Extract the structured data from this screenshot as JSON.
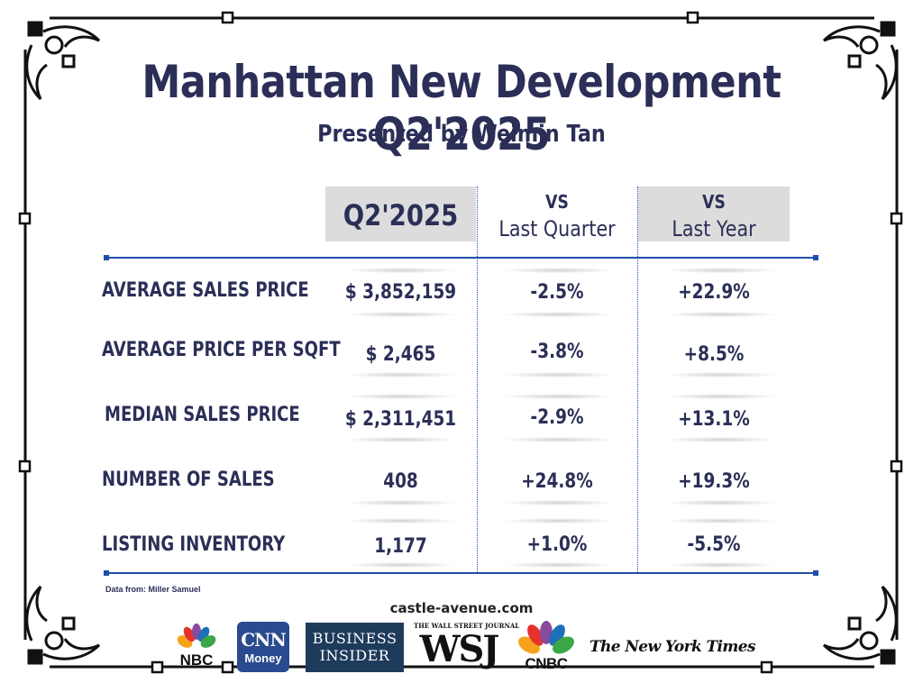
{
  "title": "Manhattan New Development Q2'2025",
  "subtitle": "Presented by Weimin Tan",
  "table": {
    "headers": [
      {
        "line1": "Q2'2025",
        "line2": ""
      },
      {
        "line1": "VS",
        "line2": "Last Quarter"
      },
      {
        "line1": "VS",
        "line2": "Last Year"
      }
    ],
    "rows": [
      {
        "label": "AVERAGE SALES PRICE",
        "q2": "$ 3,852,159",
        "vs_quarter": "-2.5%",
        "vs_year": "+22.9%"
      },
      {
        "label": "AVERAGE PRICE PER SQFT",
        "q2": "$ 2,465",
        "vs_quarter": "-3.8%",
        "vs_year": "+8.5%"
      },
      {
        "label": "MEDIAN SALES PRICE",
        "q2": "$ 2,311,451",
        "vs_quarter": "-2.9%",
        "vs_year": "+13.1%"
      },
      {
        "label": "NUMBER OF SALES",
        "q2": "408",
        "vs_quarter": "+24.8%",
        "vs_year": "+19.3%"
      },
      {
        "label": "LISTING INVENTORY",
        "q2": "1,177",
        "vs_quarter": "+1.0%",
        "vs_year": "-5.5%"
      }
    ]
  },
  "source": "Data from: Miller Samuel",
  "website": "castle-avenue.com",
  "logos": {
    "nbc": "NBC",
    "cnn_top": "CNN",
    "cnn_bottom": "Money",
    "business_insider_1": "BUSINESS",
    "business_insider_2": "INSIDER",
    "wsj_small": "THE WALL STREET JOURNAL",
    "wsj": "WSJ",
    "cnbc": "CNBC",
    "nyt": "The New York Times"
  },
  "colors": {
    "navy": "#2b2f57",
    "rule_blue": "#1f4fa8",
    "header_gray": "#dcdcdc"
  }
}
